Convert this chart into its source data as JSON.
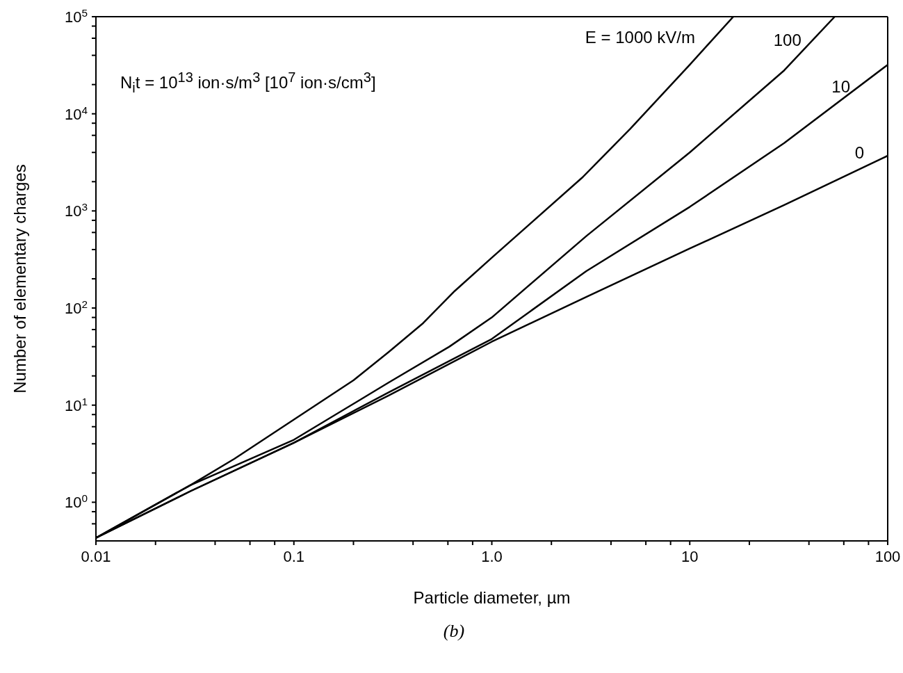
{
  "chart_data": {
    "type": "line",
    "xlabel": "Particle diameter, µm",
    "ylabel": "Number of elementary charges",
    "annotations": [
      "N$_{i}$t = 10$^{13}$ ion·s/m$^{3}$ [10$^{7}$ ion·s/cm$^{3}$]",
      "(b)"
    ],
    "log": "xy",
    "line_style": "solid",
    "marker": "none",
    "xlim": [
      0.01,
      100
    ],
    "xticks": [
      0.01,
      {
        "value": 0.02,
        "label": null
      },
      {
        "value": 0.04,
        "label": null
      },
      {
        "value": 0.06,
        "label": null
      },
      {
        "value": 0.08,
        "label": null
      },
      0.1,
      {
        "value": 0.2,
        "label": null
      },
      {
        "value": 0.4,
        "label": null
      },
      {
        "value": 0.6,
        "label": null
      },
      {
        "value": 0.8,
        "label": null
      },
      {
        "value": 1,
        "label": "1.0"
      },
      {
        "value": 2,
        "label": null
      },
      {
        "value": 4,
        "label": null
      },
      {
        "value": 6,
        "label": null
      },
      {
        "value": 8,
        "label": null
      },
      10,
      {
        "value": 20,
        "label": null
      },
      {
        "value": 40,
        "label": null
      },
      {
        "value": 60,
        "label": null
      },
      {
        "value": 80,
        "label": null
      },
      100
    ],
    "ylim": [
      0.4,
      100000
    ],
    "yticks": [
      {
        "value": 0.6,
        "label": null
      },
      {
        "value": 0.8,
        "label": null
      },
      {
        "value": 1,
        "label": "10$^{0}$"
      },
      {
        "value": 2,
        "label": null
      },
      {
        "value": 4,
        "label": null
      },
      {
        "value": 6,
        "label": null
      },
      {
        "value": 8,
        "label": null
      },
      {
        "value": 10,
        "label": "10$^{1}$"
      },
      {
        "value": 20,
        "label": null
      },
      {
        "value": 40,
        "label": null
      },
      {
        "value": 60,
        "label": null
      },
      {
        "value": 80,
        "label": null
      },
      {
        "value": 100,
        "label": "10$^{2}$"
      },
      {
        "value": 200,
        "label": null
      },
      {
        "value": 400,
        "label": null
      },
      {
        "value": 600,
        "label": null
      },
      {
        "value": 800,
        "label": null
      },
      {
        "value": 1000,
        "label": "10$^{3}$"
      },
      {
        "value": 2000,
        "label": null
      },
      {
        "value": 4000,
        "label": null
      },
      {
        "value": 6000,
        "label": null
      },
      {
        "value": 8000,
        "label": null
      },
      {
        "value": 10000,
        "label": "10$^{4}$"
      },
      {
        "value": 20000,
        "label": null
      },
      {
        "value": 40000,
        "label": null
      },
      {
        "value": 60000,
        "label": null
      },
      {
        "value": 80000,
        "label": null
      },
      {
        "value": 100000,
        "label": "10$^{5}$"
      }
    ],
    "series": [
      {
        "name": "E = 1000 kV/m",
        "color": "#000000",
        "x": [
          0.01,
          0.03,
          0.05,
          0.1,
          0.2,
          0.3,
          0.45,
          0.65,
          1,
          2.86,
          5,
          10,
          16.6
        ],
        "values": [
          0.43,
          1.5,
          2.8,
          7.1,
          18,
          35,
          70,
          150,
          330,
          2200,
          7000,
          32000,
          100000
        ]
      },
      {
        "name": "100",
        "color": "#000000",
        "x": [
          0.01,
          0.03,
          0.1,
          0.3,
          0.61,
          1,
          3,
          10,
          30,
          54
        ],
        "values": [
          0.43,
          1.5,
          4.4,
          17,
          40,
          80,
          550,
          4000,
          28000,
          100000
        ]
      },
      {
        "name": "10",
        "color": "#000000",
        "x": [
          0.01,
          0.03,
          0.1,
          0.3,
          1,
          3,
          10,
          30,
          100
        ],
        "values": [
          0.43,
          1.3,
          4.1,
          13.5,
          48,
          240,
          1100,
          5000,
          32000
        ]
      },
      {
        "name": "0",
        "color": "#000000",
        "x": [
          0.01,
          0.03,
          0.1,
          0.3,
          1,
          3,
          10,
          30,
          100
        ],
        "values": [
          0.43,
          1.3,
          4.1,
          12.5,
          45,
          130,
          410,
          1150,
          3700
        ]
      }
    ]
  }
}
